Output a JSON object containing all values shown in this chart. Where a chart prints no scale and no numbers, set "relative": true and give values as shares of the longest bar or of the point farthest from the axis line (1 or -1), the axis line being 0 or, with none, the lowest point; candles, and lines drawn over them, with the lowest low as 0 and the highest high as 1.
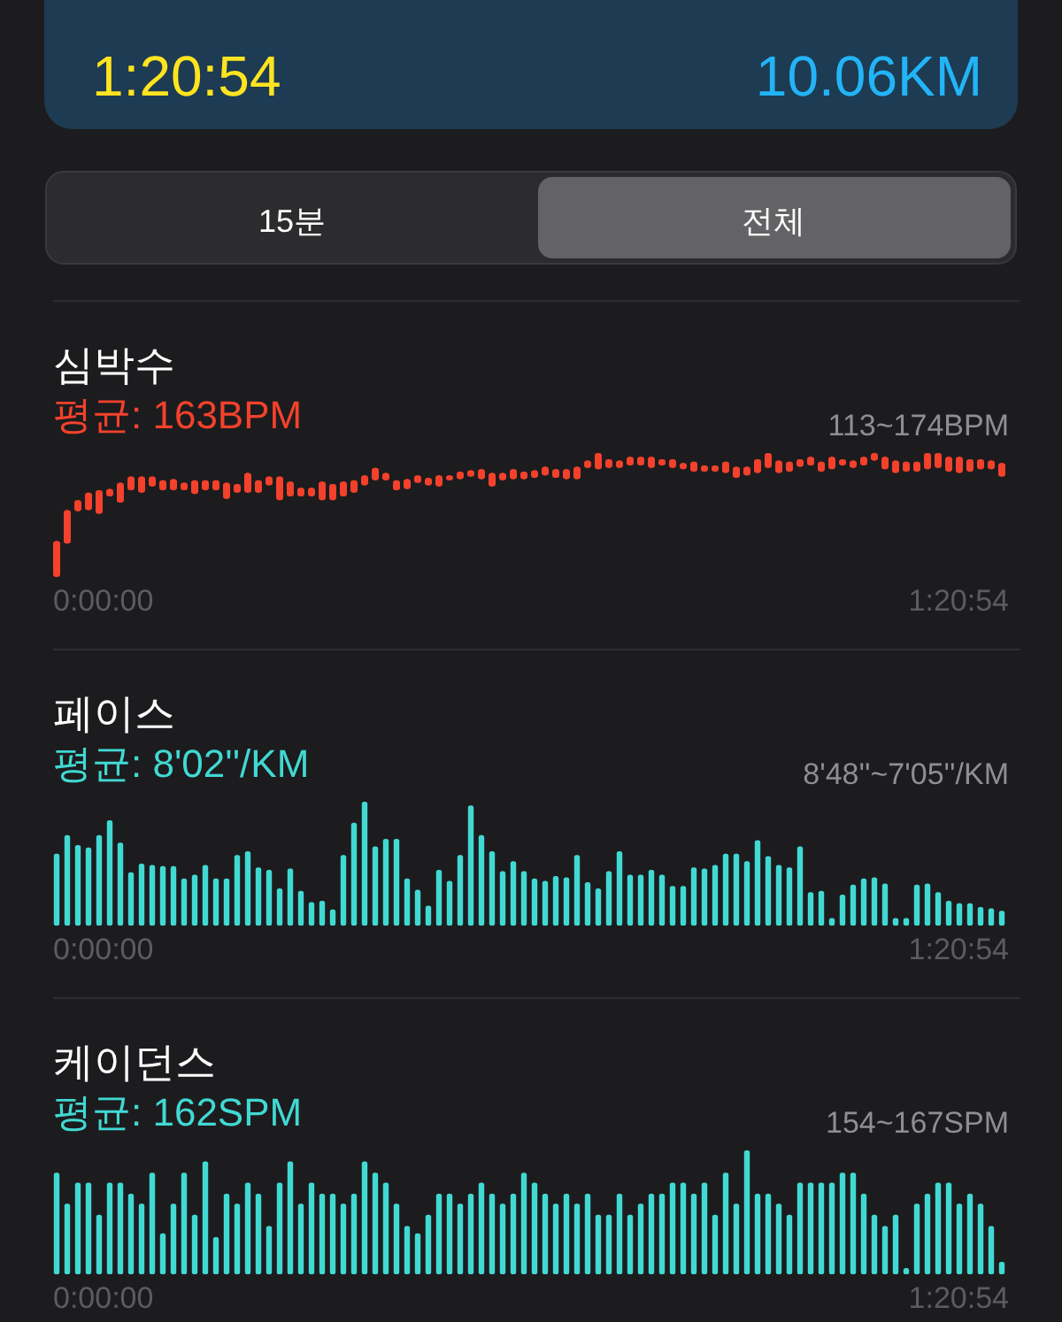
{
  "chart_data": [
    {
      "type": "other",
      "annotations": [
        "1:20:54",
        "10.06KM",
        "15분",
        "전체"
      ]
    },
    {
      "type": "candlestick",
      "title": "심박수",
      "subtitle": "평균: 163BPM",
      "annotations": [
        "113~174BPM",
        "0:00:00",
        "1:20:54"
      ],
      "relative": true,
      "color": "#f4412c",
      "categories": [
        null,
        null,
        null,
        null,
        null,
        null,
        null,
        null,
        null,
        null,
        null,
        null,
        null,
        null,
        null,
        null,
        null,
        null,
        null,
        null,
        null,
        null,
        null,
        null,
        null,
        null,
        null,
        null,
        null,
        null,
        null,
        null,
        null,
        null,
        null,
        null,
        null,
        null,
        null,
        null,
        null,
        null,
        null,
        null,
        null,
        null,
        null,
        null,
        null,
        null,
        null,
        null,
        null,
        null,
        null,
        null,
        null,
        null,
        null,
        null,
        null,
        null,
        null,
        null,
        null,
        null,
        null,
        null,
        null,
        null,
        null,
        null,
        null,
        null,
        null,
        null,
        null,
        null,
        null,
        null,
        null,
        null,
        null,
        null,
        null,
        null,
        null,
        null,
        null,
        null
      ],
      "ohlc": [
        [
          0,
          0.29,
          0,
          0.29
        ],
        [
          0.27,
          0.54,
          0.27,
          0.54
        ],
        [
          0.53,
          0.62,
          0.53,
          0.62
        ],
        [
          0.54,
          0.68,
          0.54,
          0.68
        ],
        [
          0.51,
          0.7,
          0.51,
          0.7
        ],
        [
          0.65,
          0.71,
          0.65,
          0.71
        ],
        [
          0.6,
          0.76,
          0.6,
          0.76
        ],
        [
          0.7,
          0.81,
          0.7,
          0.81
        ],
        [
          0.68,
          0.81,
          0.68,
          0.81
        ],
        [
          0.73,
          0.81,
          0.73,
          0.81
        ],
        [
          0.7,
          0.78,
          0.7,
          0.78
        ],
        [
          0.7,
          0.79,
          0.7,
          0.79
        ],
        [
          0.7,
          0.76,
          0.7,
          0.76
        ],
        [
          0.67,
          0.78,
          0.67,
          0.78
        ],
        [
          0.7,
          0.78,
          0.7,
          0.78
        ],
        [
          0.7,
          0.78,
          0.7,
          0.78
        ],
        [
          0.63,
          0.76,
          0.63,
          0.76
        ],
        [
          0.68,
          0.75,
          0.68,
          0.75
        ],
        [
          0.68,
          0.84,
          0.68,
          0.84
        ],
        [
          0.68,
          0.78,
          0.68,
          0.78
        ],
        [
          0.74,
          0.81,
          0.74,
          0.81
        ],
        [
          0.62,
          0.81,
          0.62,
          0.81
        ],
        [
          0.65,
          0.77,
          0.65,
          0.77
        ],
        [
          0.65,
          0.72,
          0.65,
          0.72
        ],
        [
          0.65,
          0.72,
          0.65,
          0.72
        ],
        [
          0.62,
          0.77,
          0.62,
          0.77
        ],
        [
          0.62,
          0.75,
          0.62,
          0.75
        ],
        [
          0.65,
          0.77,
          0.65,
          0.77
        ],
        [
          0.68,
          0.78,
          0.68,
          0.78
        ],
        [
          0.74,
          0.82,
          0.74,
          0.82
        ],
        [
          0.78,
          0.88,
          0.78,
          0.88
        ],
        [
          0.78,
          0.84,
          0.78,
          0.84
        ],
        [
          0.7,
          0.78,
          0.7,
          0.78
        ],
        [
          0.71,
          0.79,
          0.71,
          0.79
        ],
        [
          0.76,
          0.82,
          0.76,
          0.82
        ],
        [
          0.74,
          0.8,
          0.74,
          0.8
        ],
        [
          0.73,
          0.82,
          0.73,
          0.82
        ],
        [
          0.78,
          0.82,
          0.78,
          0.82
        ],
        [
          0.79,
          0.85,
          0.79,
          0.85
        ],
        [
          0.81,
          0.86,
          0.81,
          0.86
        ],
        [
          0.79,
          0.87,
          0.79,
          0.87
        ],
        [
          0.73,
          0.84,
          0.73,
          0.84
        ],
        [
          0.78,
          0.84,
          0.78,
          0.84
        ],
        [
          0.79,
          0.87,
          0.79,
          0.87
        ],
        [
          0.79,
          0.85,
          0.79,
          0.85
        ],
        [
          0.8,
          0.86,
          0.8,
          0.86
        ],
        [
          0.82,
          0.89,
          0.82,
          0.89
        ],
        [
          0.8,
          0.87,
          0.8,
          0.87
        ],
        [
          0.79,
          0.87,
          0.79,
          0.87
        ],
        [
          0.79,
          0.89,
          0.79,
          0.89
        ],
        [
          0.88,
          0.94,
          0.88,
          0.94
        ],
        [
          0.87,
          1,
          0.87,
          1
        ],
        [
          0.88,
          0.95,
          0.88,
          0.95
        ],
        [
          0.88,
          0.94,
          0.88,
          0.94
        ],
        [
          0.9,
          0.97,
          0.9,
          0.97
        ],
        [
          0.9,
          0.97,
          0.9,
          0.97
        ],
        [
          0.88,
          0.97,
          0.88,
          0.97
        ],
        [
          0.9,
          0.95,
          0.9,
          0.95
        ],
        [
          0.88,
          0.95,
          0.88,
          0.95
        ],
        [
          0.87,
          0.92,
          0.87,
          0.92
        ],
        [
          0.85,
          0.93,
          0.85,
          0.93
        ],
        [
          0.85,
          0.9,
          0.85,
          0.9
        ],
        [
          0.85,
          0.9,
          0.85,
          0.9
        ],
        [
          0.84,
          0.93,
          0.84,
          0.93
        ],
        [
          0.8,
          0.89,
          0.8,
          0.89
        ],
        [
          0.82,
          0.89,
          0.82,
          0.89
        ],
        [
          0.84,
          0.95,
          0.84,
          0.95
        ],
        [
          0.88,
          1,
          0.88,
          1
        ],
        [
          0.84,
          0.94,
          0.84,
          0.94
        ],
        [
          0.85,
          0.93,
          0.85,
          0.93
        ],
        [
          0.89,
          0.95,
          0.89,
          0.95
        ],
        [
          0.9,
          0.97,
          0.9,
          0.97
        ],
        [
          0.85,
          0.93,
          0.85,
          0.93
        ],
        [
          0.87,
          0.97,
          0.87,
          0.97
        ],
        [
          0.9,
          0.95,
          0.9,
          0.95
        ],
        [
          0.88,
          0.94,
          0.88,
          0.94
        ],
        [
          0.9,
          0.97,
          0.9,
          0.97
        ],
        [
          0.94,
          1,
          0.94,
          1
        ],
        [
          0.87,
          0.97,
          0.87,
          0.97
        ],
        [
          0.84,
          0.94,
          0.84,
          0.94
        ],
        [
          0.85,
          0.93,
          0.85,
          0.93
        ],
        [
          0.85,
          0.93,
          0.85,
          0.93
        ],
        [
          0.87,
          1,
          0.87,
          1
        ],
        [
          0.88,
          1,
          0.88,
          1
        ],
        [
          0.85,
          0.97,
          0.85,
          0.97
        ],
        [
          0.84,
          0.97,
          0.84,
          0.97
        ],
        [
          0.85,
          0.95,
          0.85,
          0.95
        ],
        [
          0.87,
          0.95,
          0.87,
          0.95
        ],
        [
          0.87,
          0.94,
          0.87,
          0.94
        ],
        [
          0.81,
          0.92,
          0.81,
          0.92
        ]
      ]
    },
    {
      "type": "bar",
      "title": "페이스",
      "subtitle": "평균: 8'02''/KM",
      "annotations": [
        "8'48''~7'05''/KM",
        "0:00:00",
        "1:20:54"
      ],
      "relative": true,
      "color": "#41d9d3",
      "categories": [
        null,
        null,
        null,
        null,
        null,
        null,
        null,
        null,
        null,
        null,
        null,
        null,
        null,
        null,
        null,
        null,
        null,
        null,
        null,
        null,
        null,
        null,
        null,
        null,
        null,
        null,
        null,
        null,
        null,
        null,
        null,
        null,
        null,
        null,
        null,
        null,
        null,
        null,
        null,
        null,
        null,
        null,
        null,
        null,
        null,
        null,
        null,
        null,
        null,
        null,
        null,
        null,
        null,
        null,
        null,
        null,
        null,
        null,
        null,
        null,
        null,
        null,
        null,
        null,
        null,
        null,
        null,
        null,
        null,
        null,
        null,
        null,
        null,
        null,
        null,
        null,
        null,
        null,
        null,
        null,
        null,
        null,
        null,
        null,
        null,
        null,
        null,
        null,
        null,
        null
      ],
      "values": [
        0.58,
        0.73,
        0.65,
        0.63,
        0.73,
        0.85,
        0.67,
        0.43,
        0.5,
        0.49,
        0.48,
        0.48,
        0.38,
        0.41,
        0.49,
        0.38,
        0.38,
        0.57,
        0.6,
        0.47,
        0.45,
        0.3,
        0.46,
        0.28,
        0.19,
        0.2,
        0.13,
        0.57,
        0.83,
        1,
        0.64,
        0.7,
        0.7,
        0.38,
        0.29,
        0.16,
        0.45,
        0.36,
        0.57,
        0.97,
        0.73,
        0.6,
        0.44,
        0.52,
        0.44,
        0.38,
        0.36,
        0.4,
        0.39,
        0.57,
        0.35,
        0.3,
        0.44,
        0.6,
        0.41,
        0.41,
        0.45,
        0.41,
        0.32,
        0.32,
        0.47,
        0.46,
        0.49,
        0.58,
        0.58,
        0.52,
        0.69,
        0.56,
        0.49,
        0.47,
        0.64,
        0.27,
        0.28,
        0.06,
        0.25,
        0.33,
        0.38,
        0.39,
        0.34,
        0.06,
        0.06,
        0.33,
        0.34,
        0.27,
        0.2,
        0.18,
        0.18,
        0.15,
        0.14,
        0.12
      ]
    },
    {
      "type": "bar",
      "title": "케이던스",
      "subtitle": "평균: 162SPM",
      "annotations": [
        "154~167SPM",
        "0:00:00",
        "1:20:54"
      ],
      "relative": true,
      "color": "#41d9d3",
      "categories": [
        null,
        null,
        null,
        null,
        null,
        null,
        null,
        null,
        null,
        null,
        null,
        null,
        null,
        null,
        null,
        null,
        null,
        null,
        null,
        null,
        null,
        null,
        null,
        null,
        null,
        null,
        null,
        null,
        null,
        null,
        null,
        null,
        null,
        null,
        null,
        null,
        null,
        null,
        null,
        null,
        null,
        null,
        null,
        null,
        null,
        null,
        null,
        null,
        null,
        null,
        null,
        null,
        null,
        null,
        null,
        null,
        null,
        null,
        null,
        null,
        null,
        null,
        null,
        null,
        null,
        null,
        null,
        null,
        null,
        null,
        null,
        null,
        null,
        null,
        null,
        null,
        null,
        null,
        null,
        null,
        null,
        null,
        null,
        null,
        null,
        null,
        null,
        null,
        null,
        null
      ],
      "values": [
        0.82,
        0.57,
        0.74,
        0.74,
        0.48,
        0.74,
        0.74,
        0.65,
        0.57,
        0.82,
        0.33,
        0.57,
        0.82,
        0.48,
        0.91,
        0.3,
        0.65,
        0.57,
        0.74,
        0.65,
        0.39,
        0.74,
        0.91,
        0.57,
        0.74,
        0.65,
        0.65,
        0.57,
        0.65,
        0.91,
        0.82,
        0.74,
        0.57,
        0.39,
        0.33,
        0.48,
        0.65,
        0.65,
        0.57,
        0.65,
        0.74,
        0.65,
        0.57,
        0.65,
        0.82,
        0.74,
        0.65,
        0.57,
        0.65,
        0.57,
        0.65,
        0.48,
        0.48,
        0.65,
        0.48,
        0.57,
        0.65,
        0.65,
        0.74,
        0.74,
        0.65,
        0.74,
        0.48,
        0.82,
        0.57,
        1,
        0.65,
        0.65,
        0.57,
        0.48,
        0.74,
        0.74,
        0.74,
        0.74,
        0.82,
        0.82,
        0.65,
        0.48,
        0.39,
        0.48,
        0.05,
        0.57,
        0.65,
        0.74,
        0.74,
        0.57,
        0.65,
        0.57,
        0.39,
        0.1
      ]
    }
  ]
}
